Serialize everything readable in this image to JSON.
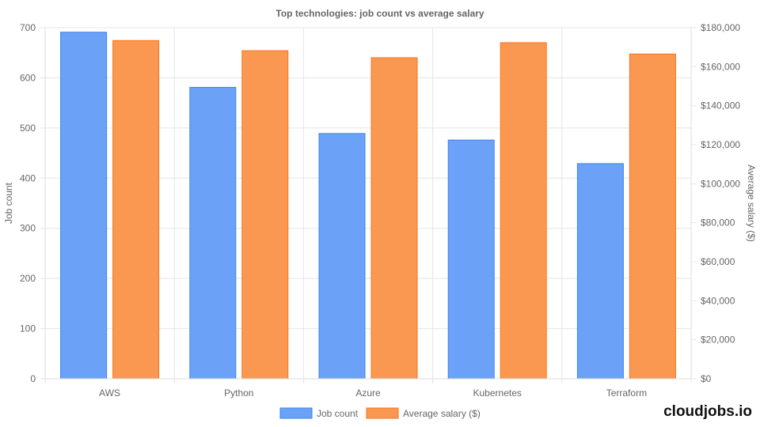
{
  "chart_data": {
    "type": "bar",
    "title": "Top technologies: job count vs average salary",
    "categories": [
      "AWS",
      "Python",
      "Azure",
      "Kubernetes",
      "Terraform"
    ],
    "series": [
      {
        "name": "Job count",
        "axis": "left",
        "color": "#6ba2f7",
        "border": "#3b82f6",
        "values": [
          691,
          581,
          489,
          476,
          429
        ]
      },
      {
        "name": "Average salary ($)",
        "axis": "right",
        "color": "#fa9851",
        "border": "#f97316",
        "values": [
          173400,
          168200,
          164600,
          172300,
          166500
        ]
      }
    ],
    "ylabel": "Job count",
    "ylim": [
      0,
      700
    ],
    "yticks": [
      "0",
      "100",
      "200",
      "300",
      "400",
      "500",
      "600",
      "700"
    ],
    "y2label": "Average salary ($)",
    "y2lim": [
      0,
      180000
    ],
    "y2ticks": [
      "$0",
      "$20,000",
      "$40,000",
      "$60,000",
      "$80,000",
      "$100,000",
      "$120,000",
      "$140,000",
      "$160,000",
      "$180,000"
    ],
    "grid": true,
    "legend": "bottom"
  },
  "brand": "cloudjobs.io"
}
